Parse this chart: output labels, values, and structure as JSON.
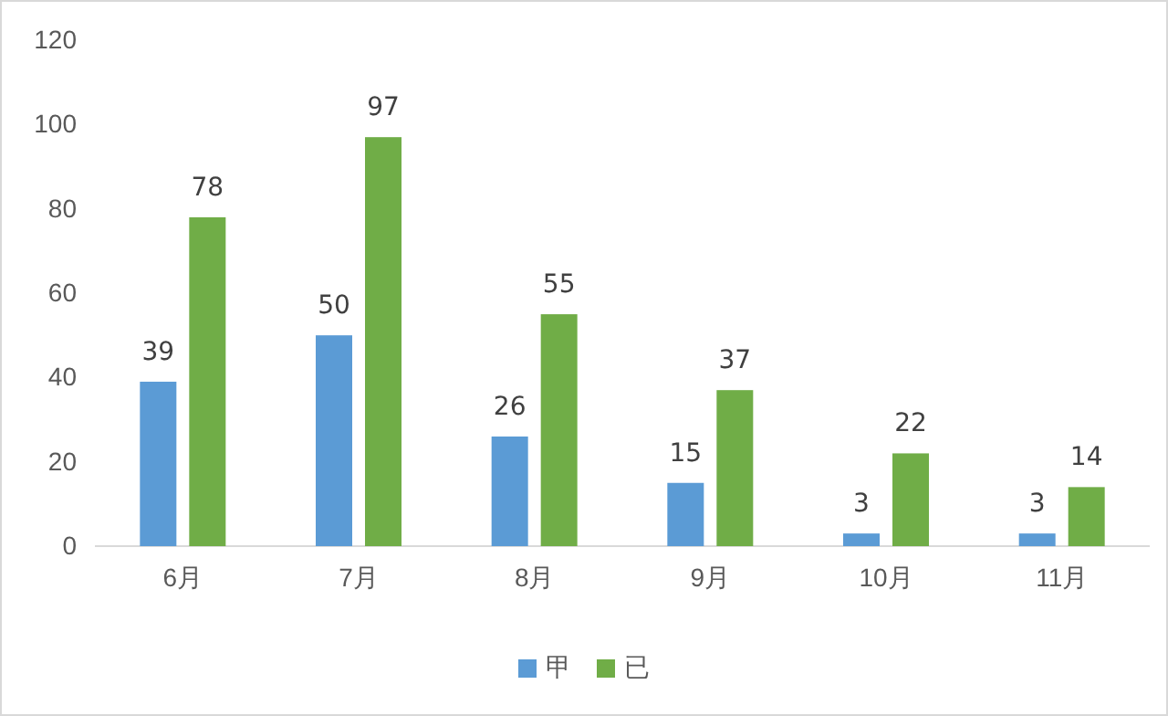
{
  "chart_data": {
    "type": "bar",
    "categories": [
      "6月",
      "7月",
      "8月",
      "9月",
      "10月",
      "11月"
    ],
    "series": [
      {
        "name": "甲",
        "color": "#5b9bd5",
        "values": [
          39,
          50,
          26,
          15,
          3,
          3
        ]
      },
      {
        "name": "已",
        "color": "#70ad47",
        "values": [
          78,
          97,
          55,
          37,
          22,
          14
        ]
      }
    ],
    "ylim": [
      0,
      120
    ],
    "yticks": [
      0,
      20,
      40,
      60,
      80,
      100,
      120
    ],
    "data_labels": true,
    "legend": "bottom",
    "grid": false
  }
}
